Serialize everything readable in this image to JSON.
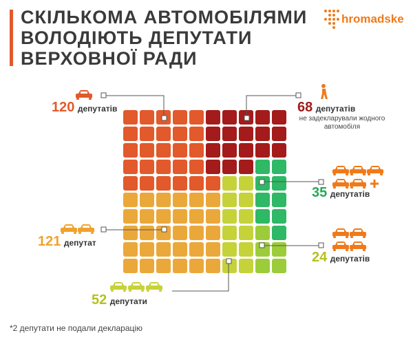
{
  "title": {
    "line1": "Скількома автомобілями",
    "line2": "володіють депутати",
    "line3": "Верховної ради"
  },
  "logo": {
    "text": "hromadske"
  },
  "footnote": "*2 депутати не подали декларацію",
  "colors": {
    "accent": "#e2592b",
    "orange_dark": "#e2592b",
    "red": "#a31b1b",
    "orange_light": "#eba83a",
    "yellow_green": "#c6d23a",
    "green": "#2fb865",
    "label_orange": "#e2592b",
    "label_red": "#a31b1b",
    "label_yellow": "#f0a22d",
    "label_lime": "#b3c11f",
    "label_green": "#27a858"
  },
  "chart_data": {
    "type": "waffle",
    "title": "Скількома автомобілями володіють депутати Верховної ради",
    "total_cells": 100,
    "series": [
      {
        "name": "1 автомобіль",
        "count": 120,
        "count_label": "120",
        "unit": "депутатів",
        "color": "#e2592b"
      },
      {
        "name": "не задекларували жодного автомобіля",
        "count": 68,
        "count_label": "68",
        "unit": "депутатів",
        "note": "не задекларували жодного автомобіля",
        "color": "#a31b1b"
      },
      {
        "name": "2 автомобілі",
        "count": 121,
        "count_label": "121",
        "unit": "депутат",
        "color": "#eba83a"
      },
      {
        "name": "3 автомобілі",
        "count": 52,
        "count_label": "52",
        "unit": "депутати",
        "color": "#c6d23a"
      },
      {
        "name": "4 автомобілі",
        "count": 24,
        "count_label": "24",
        "unit": "депутатів",
        "color": "#9ccc3a"
      },
      {
        "name": "5 і більше автомобілів",
        "count": 35,
        "count_label": "35",
        "unit": "депутатів",
        "color": "#2fb865"
      }
    ],
    "grid_rows": [
      [
        "o",
        "o",
        "o",
        "o",
        "o",
        "r",
        "r",
        "r",
        "r",
        "r"
      ],
      [
        "o",
        "o",
        "o",
        "o",
        "o",
        "r",
        "r",
        "r",
        "r",
        "r"
      ],
      [
        "o",
        "o",
        "o",
        "o",
        "o",
        "r",
        "r",
        "r",
        "r",
        "r"
      ],
      [
        "o",
        "o",
        "o",
        "o",
        "o",
        "r",
        "r",
        "r",
        "g",
        "g"
      ],
      [
        "o",
        "o",
        "o",
        "o",
        "o",
        "o",
        "l",
        "l",
        "g",
        "g"
      ],
      [
        "y",
        "y",
        "y",
        "y",
        "y",
        "y",
        "l",
        "l",
        "g",
        "g"
      ],
      [
        "y",
        "y",
        "y",
        "y",
        "y",
        "y",
        "l",
        "l",
        "g",
        "g"
      ],
      [
        "y",
        "y",
        "y",
        "y",
        "y",
        "y",
        "l",
        "l",
        "k",
        "g"
      ],
      [
        "y",
        "y",
        "y",
        "y",
        "y",
        "y",
        "l",
        "l",
        "k",
        "k"
      ],
      [
        "y",
        "y",
        "y",
        "y",
        "y",
        "y",
        "l",
        "l",
        "k",
        "k"
      ]
    ],
    "cell_colors": {
      "o": "#e2592b",
      "r": "#a31b1b",
      "y": "#eba83a",
      "l": "#c6d23a",
      "k": "#9ccc3a",
      "g": "#2fb865"
    }
  }
}
